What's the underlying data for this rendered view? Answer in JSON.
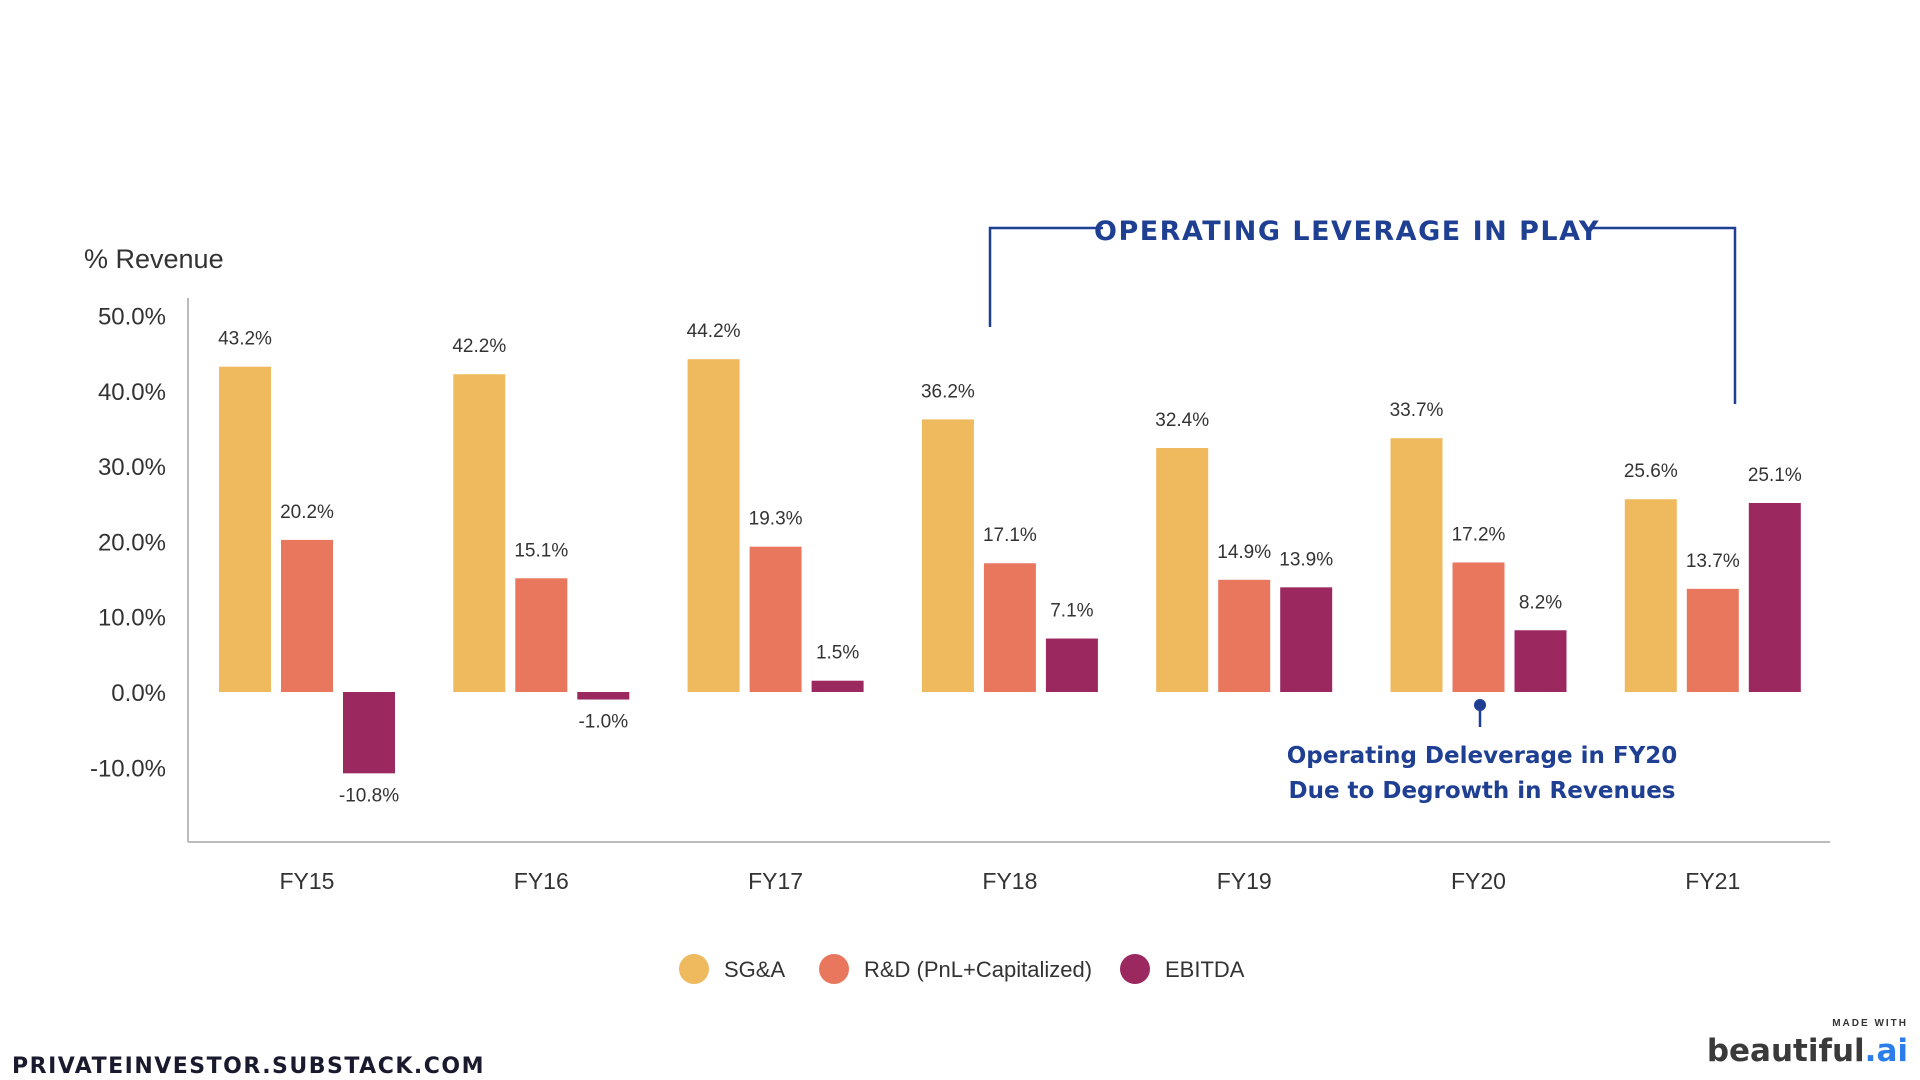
{
  "colors": {
    "sga": "#EFB95D",
    "rnd": "#E8775E",
    "ebitda": "#9C2860",
    "annotation": "#1F3F93",
    "axis": "#bbbbbb",
    "text": "#333333"
  },
  "chart_data": {
    "type": "bar",
    "ylabel": "% Revenue",
    "ylim": [
      -20,
      50
    ],
    "yticks": [
      "50.0%",
      "40.0%",
      "30.0%",
      "20.0%",
      "10.0%",
      "0.0%",
      "-10.0%"
    ],
    "categories": [
      "FY15",
      "FY16",
      "FY17",
      "FY18",
      "FY19",
      "FY20",
      "FY21"
    ],
    "series": [
      {
        "name": "SG&A",
        "values": [
          43.2,
          42.2,
          44.2,
          36.2,
          32.4,
          33.7,
          25.6
        ],
        "labels": [
          "43.2%",
          "42.2%",
          "44.2%",
          "36.2%",
          "32.4%",
          "33.7%",
          "25.6%"
        ]
      },
      {
        "name": "R&D (PnL+Capitalized)",
        "values": [
          20.2,
          15.1,
          19.3,
          17.1,
          14.9,
          17.2,
          13.7
        ],
        "labels": [
          "20.2%",
          "15.1%",
          "19.3%",
          "17.1%",
          "14.9%",
          "17.2%",
          "13.7%"
        ]
      },
      {
        "name": "EBITDA",
        "values": [
          -10.8,
          -1.0,
          1.5,
          7.1,
          13.9,
          8.2,
          25.1
        ],
        "labels": [
          "-10.8%",
          "-1.0%",
          "1.5%",
          "7.1%",
          "13.9%",
          "8.2%",
          "25.1%"
        ]
      }
    ],
    "legend_position": "bottom-center",
    "annotations": {
      "bracket_title": "OPERATING LEVERAGE IN PLAY",
      "callout_line1": "Operating Deleverage in FY20",
      "callout_line2": "Due to Degrowth in Revenues"
    }
  },
  "footer": {
    "site": "PRIVATEINVESTOR.SUBSTACK.COM",
    "made_with": "MADE WITH",
    "brand_main": "beautiful",
    "brand_dot": ".ai"
  }
}
